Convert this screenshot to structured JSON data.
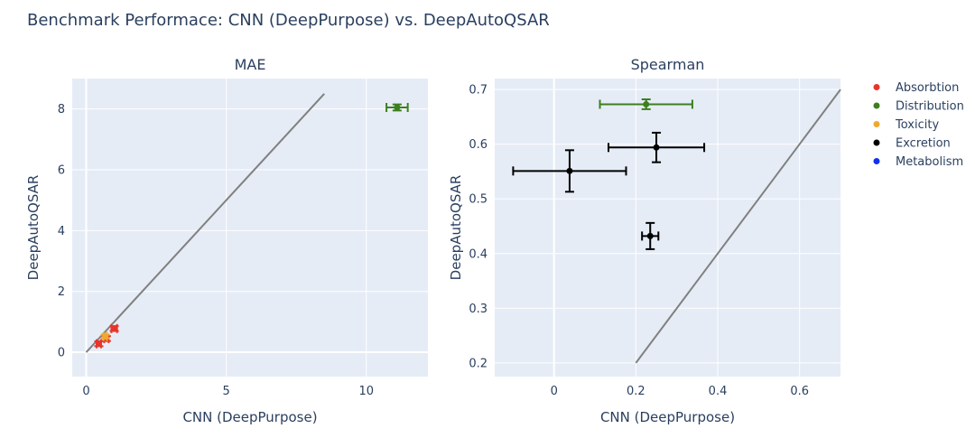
{
  "title": "Benchmark Performace: CNN (DeepPurpose) vs. DeepAutoQSAR",
  "legend": [
    {
      "name": "Absorbtion",
      "color": "#e8342a"
    },
    {
      "name": "Distribution",
      "color": "#3d7f1e"
    },
    {
      "name": "Toxicity",
      "color": "#f0a830"
    },
    {
      "name": "Excretion",
      "color": "#000000"
    },
    {
      "name": "Metabolism",
      "color": "#1030f0"
    }
  ],
  "chart_data": [
    {
      "type": "scatter",
      "title": "MAE",
      "xlabel": "CNN (DeepPurpose)",
      "ylabel": "DeepAutoQSAR",
      "xlim": [
        -0.5,
        12.2
      ],
      "ylim": [
        -0.8,
        9.0
      ],
      "xticks": [
        0,
        5,
        10
      ],
      "yticks": [
        0,
        2,
        4,
        6,
        8
      ],
      "xtick_labels": [
        "0",
        "5",
        "10"
      ],
      "ytick_labels": [
        "0",
        "2",
        "4",
        "6",
        "8"
      ],
      "grid": true,
      "reference_line": {
        "x": [
          0,
          8.5
        ],
        "y": [
          0,
          8.5
        ],
        "color": "#808080"
      },
      "series": [
        {
          "name": "Absorbtion",
          "color": "#e8342a",
          "points": [
            {
              "x": 0.45,
              "y": 0.28,
              "xerr": 0.08,
              "yerr": 0.08
            },
            {
              "x": 0.72,
              "y": 0.45,
              "xerr": 0.08,
              "yerr": 0.08
            },
            {
              "x": 1.0,
              "y": 0.78,
              "xerr": 0.1,
              "yerr": 0.08
            }
          ]
        },
        {
          "name": "Distribution",
          "color": "#3d7f1e",
          "points": [
            {
              "x": 11.1,
              "y": 8.05,
              "xerr": 0.38,
              "yerr": 0.1
            }
          ]
        },
        {
          "name": "Toxicity",
          "color": "#f0a830",
          "points": [
            {
              "x": 0.68,
              "y": 0.52,
              "xerr": 0.06,
              "yerr": 0.06
            }
          ]
        }
      ]
    },
    {
      "type": "scatter",
      "title": "Spearman",
      "xlabel": "CNN (DeepPurpose)",
      "ylabel": "DeepAutoQSAR",
      "xlim": [
        -0.145,
        0.7
      ],
      "ylim": [
        0.175,
        0.72
      ],
      "xticks": [
        0,
        0.2,
        0.4,
        0.6
      ],
      "yticks": [
        0.2,
        0.3,
        0.4,
        0.5,
        0.6,
        0.7
      ],
      "xtick_labels": [
        "0",
        "0.2",
        "0.4",
        "0.6"
      ],
      "ytick_labels": [
        "0.2",
        "0.3",
        "0.4",
        "0.5",
        "0.6",
        "0.7"
      ],
      "grid": true,
      "reference_line": {
        "x": [
          0.2,
          0.7
        ],
        "y": [
          0.2,
          0.7
        ],
        "color": "#808080"
      },
      "series": [
        {
          "name": "Distribution",
          "color": "#3d7f1e",
          "points": [
            {
              "x": 0.225,
              "y": 0.673,
              "xerr": 0.113,
              "yerr": 0.009
            }
          ]
        },
        {
          "name": "Excretion",
          "color": "#000000",
          "points": [
            {
              "x": 0.038,
              "y": 0.551,
              "xerr": 0.138,
              "yerr": 0.038
            },
            {
              "x": 0.25,
              "y": 0.594,
              "xerr": 0.117,
              "yerr": 0.027
            },
            {
              "x": 0.235,
              "y": 0.432,
              "xerr": 0.02,
              "yerr": 0.024
            }
          ]
        }
      ]
    }
  ]
}
